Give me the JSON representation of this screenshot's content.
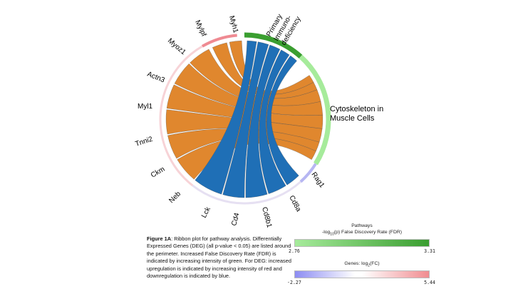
{
  "colors": {
    "ribbon_orange": "#e0872e",
    "ribbon_blue": "#1f6fb6",
    "gene_ring_light": "#f7d3d7",
    "pathway_primary": "#3a9e30",
    "pathway_cytoskeleton": "#a6eb9b",
    "down_blue": "#b6b6f2"
  },
  "genes": [
    {
      "label": "Myh1"
    },
    {
      "label": "Mylpf"
    },
    {
      "label": "Myoz1"
    },
    {
      "label": "Actn3"
    },
    {
      "label": "Myl1"
    },
    {
      "label": "Tnni2"
    },
    {
      "label": "Ckm"
    },
    {
      "label": "Neb"
    },
    {
      "label": "Lck"
    },
    {
      "label": "Cd4"
    },
    {
      "label": "Cd8b1"
    },
    {
      "label": "Cd8a"
    },
    {
      "label": "Rag1"
    }
  ],
  "pathways": {
    "primary_immunodeficiency": {
      "line1": "Primary",
      "line2": "Immuno-",
      "line3": "deficiency"
    },
    "cytoskeleton": {
      "line1": "Cytoskeleton in",
      "line2": "Muscle Cells"
    }
  },
  "caption": {
    "label": "Figure 1A",
    "text": ": Ribbon plot for pathway analysis. Differentially Expressed Genes (DEG) (all p-value < 0.05) are listed around the perimeter. Increased False Discovery Rate (FDR) is indicated by increasing intensity of green. For DEG: increased upregulation is indicated by increasing intensity of red and downregulation is indicated by blue."
  },
  "legend_pathway": {
    "title_line1": "Pathways",
    "title_prefix": "-log",
    "title_sub": "10",
    "title_suffix": "(p) False Discovery Rate (FDR)",
    "min": "2.76",
    "max": "3.31"
  },
  "legend_genes": {
    "title_prefix": "Genes: log",
    "title_sub": "2",
    "title_suffix": "(FC)",
    "min": "-2.27",
    "max": "5.44"
  }
}
